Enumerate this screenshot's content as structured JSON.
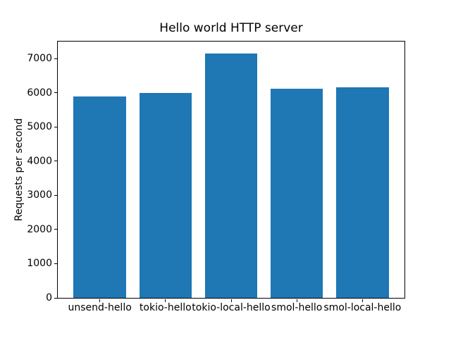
{
  "chart_data": {
    "type": "bar",
    "title": "Hello world HTTP server",
    "xlabel": "",
    "ylabel": "Requests per second",
    "categories": [
      "unsend-hello",
      "tokio-hello",
      "tokio-local-hello",
      "smol-hello",
      "smol-local-hello"
    ],
    "values": [
      5890,
      6000,
      7160,
      6110,
      6160
    ],
    "ylim": [
      0,
      7500
    ],
    "yticks": [
      0,
      1000,
      2000,
      3000,
      4000,
      5000,
      6000,
      7000
    ],
    "bar_color": "#1f77b4",
    "text_color": "#000000",
    "grid": false,
    "legend_position": "none"
  }
}
